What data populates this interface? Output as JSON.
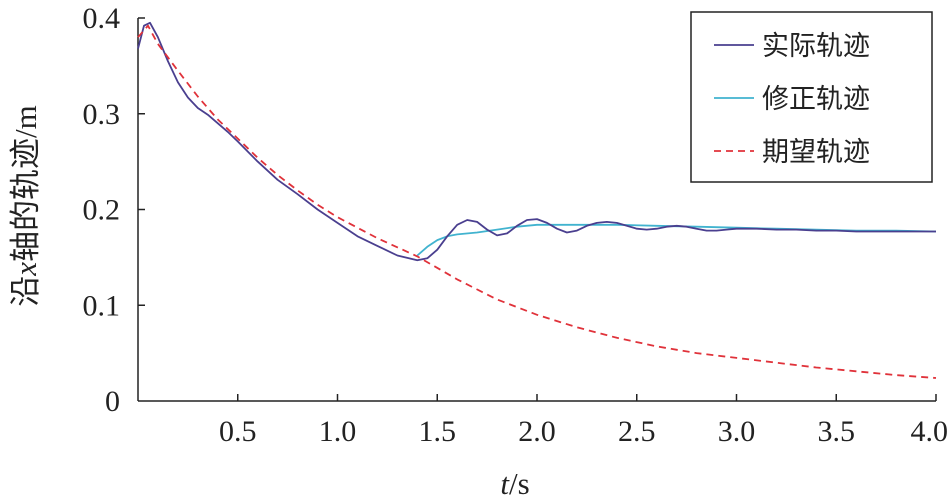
{
  "chart_data": {
    "type": "line",
    "xlabel": "t/s",
    "ylabel": "沿x轴的轨迹/m",
    "xlim": [
      0,
      4.0
    ],
    "ylim": [
      0,
      0.4
    ],
    "xticks": [
      "0.5",
      "1.0",
      "1.5",
      "2.0",
      "2.5",
      "3.0",
      "3.5",
      "4.0"
    ],
    "yticks": [
      "0",
      "0.1",
      "0.2",
      "0.3",
      "0.4"
    ],
    "grid": false,
    "legend_position": "top-right",
    "series": [
      {
        "name": "实际轨迹",
        "color": "#4a3f8f",
        "style": "solid",
        "x": [
          0.0,
          0.03,
          0.06,
          0.1,
          0.15,
          0.2,
          0.25,
          0.3,
          0.35,
          0.4,
          0.45,
          0.5,
          0.6,
          0.7,
          0.8,
          0.9,
          1.0,
          1.1,
          1.2,
          1.3,
          1.4,
          1.45,
          1.5,
          1.55,
          1.6,
          1.65,
          1.7,
          1.75,
          1.8,
          1.85,
          1.9,
          1.95,
          2.0,
          2.05,
          2.1,
          2.15,
          2.2,
          2.25,
          2.3,
          2.35,
          2.4,
          2.45,
          2.5,
          2.55,
          2.6,
          2.65,
          2.7,
          2.75,
          2.8,
          2.85,
          2.9,
          2.95,
          3.0,
          3.1,
          3.2,
          3.3,
          3.4,
          3.5,
          3.6,
          3.7,
          3.8,
          3.9,
          4.0
        ],
        "y": [
          0.368,
          0.392,
          0.395,
          0.38,
          0.355,
          0.333,
          0.317,
          0.306,
          0.299,
          0.29,
          0.281,
          0.271,
          0.25,
          0.231,
          0.216,
          0.2,
          0.186,
          0.172,
          0.162,
          0.152,
          0.147,
          0.149,
          0.158,
          0.172,
          0.184,
          0.189,
          0.187,
          0.179,
          0.173,
          0.175,
          0.183,
          0.189,
          0.19,
          0.186,
          0.18,
          0.176,
          0.178,
          0.183,
          0.186,
          0.187,
          0.186,
          0.183,
          0.18,
          0.179,
          0.18,
          0.182,
          0.183,
          0.182,
          0.18,
          0.178,
          0.178,
          0.179,
          0.18,
          0.18,
          0.179,
          0.179,
          0.178,
          0.178,
          0.177,
          0.177,
          0.177,
          0.177,
          0.177
        ]
      },
      {
        "name": "修正轨迹",
        "color": "#41b3cf",
        "style": "solid",
        "x": [
          1.4,
          1.45,
          1.5,
          1.55,
          1.6,
          1.7,
          1.8,
          1.9,
          2.0,
          2.2,
          2.4,
          2.6,
          2.8,
          3.0,
          3.2,
          3.4,
          3.6,
          3.8,
          4.0
        ],
        "y": [
          0.152,
          0.161,
          0.168,
          0.172,
          0.174,
          0.176,
          0.179,
          0.182,
          0.184,
          0.184,
          0.184,
          0.183,
          0.182,
          0.181,
          0.18,
          0.179,
          0.178,
          0.178,
          0.177
        ]
      },
      {
        "name": "期望轨迹",
        "color": "#e0323a",
        "style": "dashed",
        "x": [
          0.0,
          0.05,
          0.1,
          0.2,
          0.3,
          0.4,
          0.5,
          0.6,
          0.7,
          0.8,
          0.9,
          1.0,
          1.2,
          1.4,
          1.6,
          1.8,
          2.0,
          2.2,
          2.4,
          2.6,
          2.8,
          3.0,
          3.2,
          3.4,
          3.6,
          3.8,
          4.0
        ],
        "y": [
          0.38,
          0.392,
          0.373,
          0.345,
          0.318,
          0.294,
          0.274,
          0.254,
          0.236,
          0.22,
          0.205,
          0.192,
          0.17,
          0.151,
          0.127,
          0.106,
          0.09,
          0.077,
          0.066,
          0.057,
          0.05,
          0.045,
          0.04,
          0.035,
          0.031,
          0.027,
          0.024
        ]
      }
    ]
  }
}
